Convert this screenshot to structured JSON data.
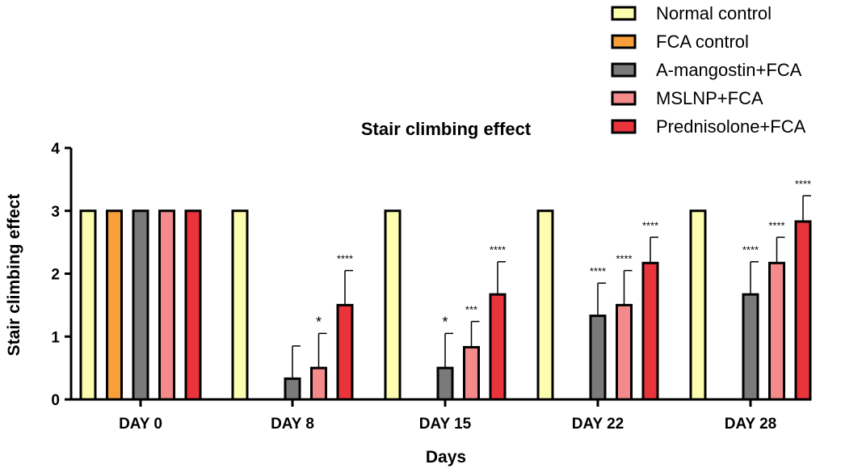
{
  "chart_data": {
    "type": "bar",
    "title": "Stair climbing effect",
    "xlabel": "Days",
    "ylabel": "Stair climbing effect",
    "ylim": [
      0,
      4
    ],
    "yticks": [
      "0",
      "1",
      "2",
      "3",
      "4"
    ],
    "categories": [
      "DAY 0",
      "DAY 8",
      "DAY 15",
      "DAY 22",
      "DAY 28"
    ],
    "legend_position": "top-right",
    "series": [
      {
        "name": "Normal control",
        "color": "#fdfdb0",
        "values": [
          3,
          3,
          3,
          3,
          3
        ],
        "errors": [
          0,
          0,
          0,
          0,
          0
        ],
        "sig": [
          "",
          "",
          "",
          "",
          ""
        ]
      },
      {
        "name": "FCA control",
        "color": "#f7a03a",
        "values": [
          3,
          0,
          0,
          0,
          0
        ],
        "errors": [
          0,
          0,
          0,
          0,
          0
        ],
        "sig": [
          "",
          "",
          "",
          "",
          ""
        ]
      },
      {
        "name": "A-mangostin+FCA",
        "color": "#7a7a7a",
        "values": [
          3,
          0.33,
          0.5,
          1.33,
          1.67
        ],
        "errors": [
          0,
          0.52,
          0.55,
          0.52,
          0.52
        ],
        "sig": [
          "",
          "",
          "*",
          "****",
          "****"
        ]
      },
      {
        "name": "MSLNP+FCA",
        "color": "#f58a8a",
        "values": [
          3,
          0.5,
          0.83,
          1.5,
          2.17
        ],
        "errors": [
          0,
          0.55,
          0.41,
          0.55,
          0.41
        ],
        "sig": [
          "",
          "*",
          "***",
          "****",
          "****"
        ]
      },
      {
        "name": "Prednisolone+FCA",
        "color": "#e8343a",
        "values": [
          3,
          1.5,
          1.67,
          2.17,
          2.83
        ],
        "errors": [
          0,
          0.55,
          0.52,
          0.41,
          0.41
        ],
        "sig": [
          "",
          "****",
          "****",
          "****",
          "****"
        ]
      }
    ]
  }
}
